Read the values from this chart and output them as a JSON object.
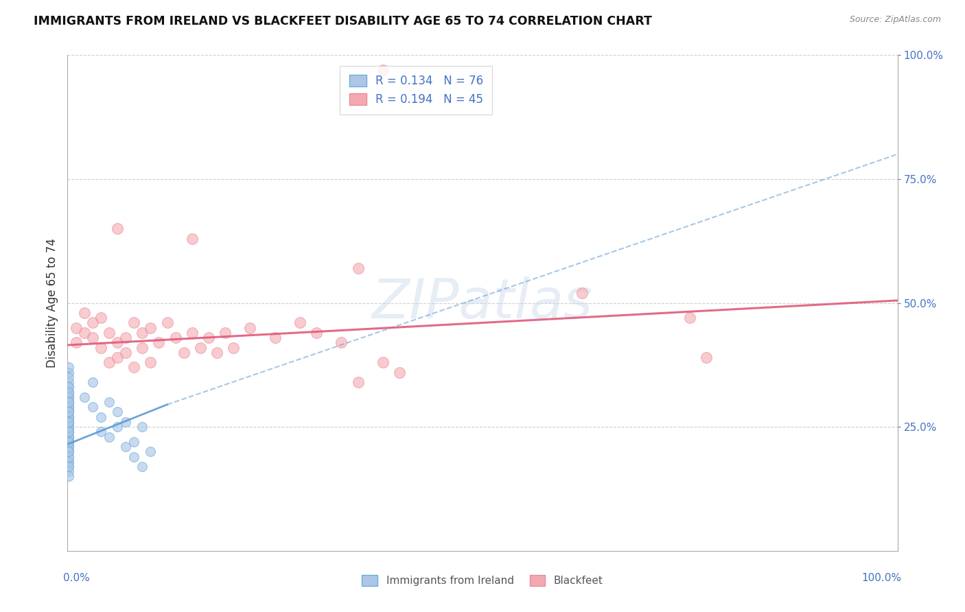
{
  "title": "IMMIGRANTS FROM IRELAND VS BLACKFEET DISABILITY AGE 65 TO 74 CORRELATION CHART",
  "source": "Source: ZipAtlas.com",
  "ylabel": "Disability Age 65 to 74",
  "legend_label_bottom": [
    "Immigrants from Ireland",
    "Blackfeet"
  ],
  "watermark": "ZIPatlas",
  "blue_scatter": [
    [
      0.001,
      0.28
    ],
    [
      0.001,
      0.3
    ],
    [
      0.001,
      0.32
    ],
    [
      0.001,
      0.26
    ],
    [
      0.001,
      0.24
    ],
    [
      0.001,
      0.22
    ],
    [
      0.001,
      0.2
    ],
    [
      0.001,
      0.18
    ],
    [
      0.001,
      0.33
    ],
    [
      0.001,
      0.29
    ],
    [
      0.001,
      0.27
    ],
    [
      0.001,
      0.25
    ],
    [
      0.001,
      0.31
    ],
    [
      0.001,
      0.23
    ],
    [
      0.001,
      0.21
    ],
    [
      0.001,
      0.19
    ],
    [
      0.001,
      0.17
    ],
    [
      0.001,
      0.28
    ],
    [
      0.001,
      0.26
    ],
    [
      0.001,
      0.24
    ],
    [
      0.001,
      0.22
    ],
    [
      0.001,
      0.3
    ],
    [
      0.001,
      0.28
    ],
    [
      0.001,
      0.26
    ],
    [
      0.001,
      0.25
    ],
    [
      0.001,
      0.23
    ],
    [
      0.001,
      0.21
    ],
    [
      0.001,
      0.31
    ],
    [
      0.001,
      0.29
    ],
    [
      0.001,
      0.27
    ],
    [
      0.001,
      0.24
    ],
    [
      0.001,
      0.22
    ],
    [
      0.001,
      0.2
    ],
    [
      0.001,
      0.18
    ],
    [
      0.001,
      0.16
    ],
    [
      0.001,
      0.28
    ],
    [
      0.001,
      0.26
    ],
    [
      0.001,
      0.3
    ],
    [
      0.001,
      0.32
    ],
    [
      0.001,
      0.34
    ],
    [
      0.001,
      0.36
    ],
    [
      0.001,
      0.27
    ],
    [
      0.001,
      0.25
    ],
    [
      0.001,
      0.23
    ],
    [
      0.001,
      0.21
    ],
    [
      0.001,
      0.19
    ],
    [
      0.001,
      0.17
    ],
    [
      0.001,
      0.15
    ],
    [
      0.001,
      0.29
    ],
    [
      0.001,
      0.31
    ],
    [
      0.001,
      0.33
    ],
    [
      0.001,
      0.35
    ],
    [
      0.001,
      0.37
    ],
    [
      0.001,
      0.28
    ],
    [
      0.001,
      0.26
    ],
    [
      0.001,
      0.24
    ],
    [
      0.001,
      0.22
    ],
    [
      0.001,
      0.2
    ],
    [
      0.001,
      0.3
    ],
    [
      0.001,
      0.32
    ],
    [
      0.02,
      0.31
    ],
    [
      0.03,
      0.34
    ],
    [
      0.04,
      0.27
    ],
    [
      0.05,
      0.3
    ],
    [
      0.06,
      0.28
    ],
    [
      0.07,
      0.26
    ],
    [
      0.08,
      0.22
    ],
    [
      0.09,
      0.25
    ],
    [
      0.1,
      0.2
    ],
    [
      0.04,
      0.24
    ],
    [
      0.05,
      0.23
    ],
    [
      0.03,
      0.29
    ],
    [
      0.06,
      0.25
    ],
    [
      0.07,
      0.21
    ],
    [
      0.08,
      0.19
    ],
    [
      0.09,
      0.17
    ]
  ],
  "pink_scatter": [
    [
      0.01,
      0.42
    ],
    [
      0.01,
      0.45
    ],
    [
      0.02,
      0.48
    ],
    [
      0.02,
      0.44
    ],
    [
      0.03,
      0.46
    ],
    [
      0.03,
      0.43
    ],
    [
      0.04,
      0.47
    ],
    [
      0.04,
      0.41
    ],
    [
      0.05,
      0.44
    ],
    [
      0.05,
      0.38
    ],
    [
      0.06,
      0.42
    ],
    [
      0.06,
      0.39
    ],
    [
      0.07,
      0.43
    ],
    [
      0.07,
      0.4
    ],
    [
      0.08,
      0.46
    ],
    [
      0.08,
      0.37
    ],
    [
      0.09,
      0.44
    ],
    [
      0.09,
      0.41
    ],
    [
      0.1,
      0.45
    ],
    [
      0.1,
      0.38
    ],
    [
      0.11,
      0.42
    ],
    [
      0.12,
      0.46
    ],
    [
      0.13,
      0.43
    ],
    [
      0.14,
      0.4
    ],
    [
      0.15,
      0.44
    ],
    [
      0.16,
      0.41
    ],
    [
      0.17,
      0.43
    ],
    [
      0.18,
      0.4
    ],
    [
      0.19,
      0.44
    ],
    [
      0.2,
      0.41
    ],
    [
      0.22,
      0.45
    ],
    [
      0.25,
      0.43
    ],
    [
      0.28,
      0.46
    ],
    [
      0.3,
      0.44
    ],
    [
      0.33,
      0.42
    ],
    [
      0.35,
      0.34
    ],
    [
      0.38,
      0.38
    ],
    [
      0.4,
      0.36
    ],
    [
      0.35,
      0.57
    ],
    [
      0.38,
      0.97
    ],
    [
      0.15,
      0.63
    ],
    [
      0.06,
      0.65
    ],
    [
      0.62,
      0.52
    ],
    [
      0.75,
      0.47
    ],
    [
      0.77,
      0.39
    ]
  ],
  "blue_line_solid": {
    "x": [
      0.0,
      0.12
    ],
    "y": [
      0.215,
      0.295
    ]
  },
  "blue_line_dashed": {
    "x": [
      0.12,
      1.0
    ],
    "y": [
      0.295,
      0.8
    ]
  },
  "pink_line": {
    "x": [
      0.0,
      1.0
    ],
    "y": [
      0.415,
      0.505
    ]
  },
  "blue_line_color": "#5b9bd5",
  "pink_line_color": "#e05a7a",
  "scatter_blue_color": "#adc6e8",
  "scatter_pink_color": "#f4a9b0",
  "scatter_blue_edge": "#6baed6",
  "scatter_pink_edge": "#e88a9a",
  "background_color": "#ffffff",
  "grid_color": "#d0d0d0",
  "xmin": 0.0,
  "xmax": 1.0,
  "ymin": 0.0,
  "ymax": 1.0
}
